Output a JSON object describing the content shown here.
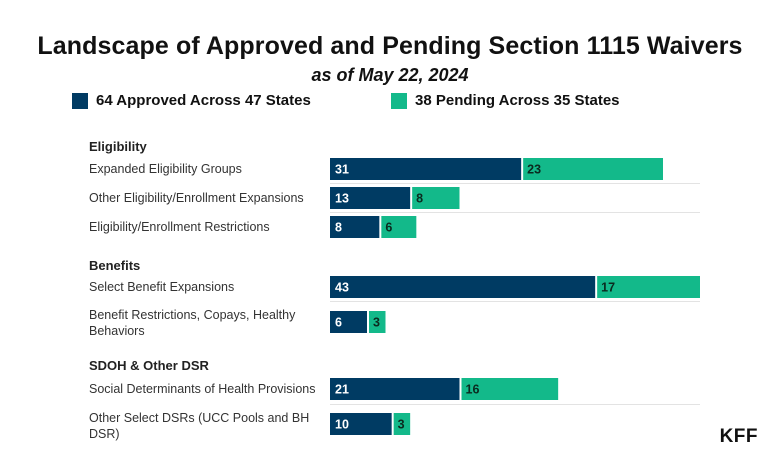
{
  "title": "Landscape of Approved and Pending Section 1115 Waivers",
  "subtitle": "as of May 22, 2024",
  "logo": "KFF",
  "colors": {
    "approved": "#003b63",
    "pending": "#13b98a"
  },
  "legend": {
    "approved": "64 Approved Across 47 States",
    "pending": "38 Pending Across 35 States"
  },
  "chart_data": {
    "type": "bar",
    "orientation": "horizontal",
    "stacked": true,
    "title": "Landscape of Approved and Pending Section 1115 Waivers",
    "subtitle": "as of May 22, 2024",
    "xlim": [
      0,
      60
    ],
    "groups": [
      "Eligibility",
      "Benefits",
      "SDOH & Other DSR"
    ],
    "categories": [
      "Expanded Eligibility Groups",
      "Other Eligibility/Enrollment Expansions",
      "Eligibility/Enrollment Restrictions",
      "Select Benefit Expansions",
      "Benefit Restrictions, Copays, Healthy Behaviors",
      "Social Determinants of Health Provisions",
      "Other Select DSRs (UCC Pools and BH DSR)"
    ],
    "category_groups": [
      "Eligibility",
      "Eligibility",
      "Eligibility",
      "Benefits",
      "Benefits",
      "SDOH & Other DSR",
      "SDOH & Other DSR"
    ],
    "series": [
      {
        "name": "64 Approved Across 47 States",
        "values": [
          31,
          13,
          8,
          43,
          6,
          21,
          10
        ]
      },
      {
        "name": "38 Pending Across 35 States",
        "values": [
          23,
          8,
          6,
          17,
          3,
          16,
          3
        ]
      }
    ]
  }
}
